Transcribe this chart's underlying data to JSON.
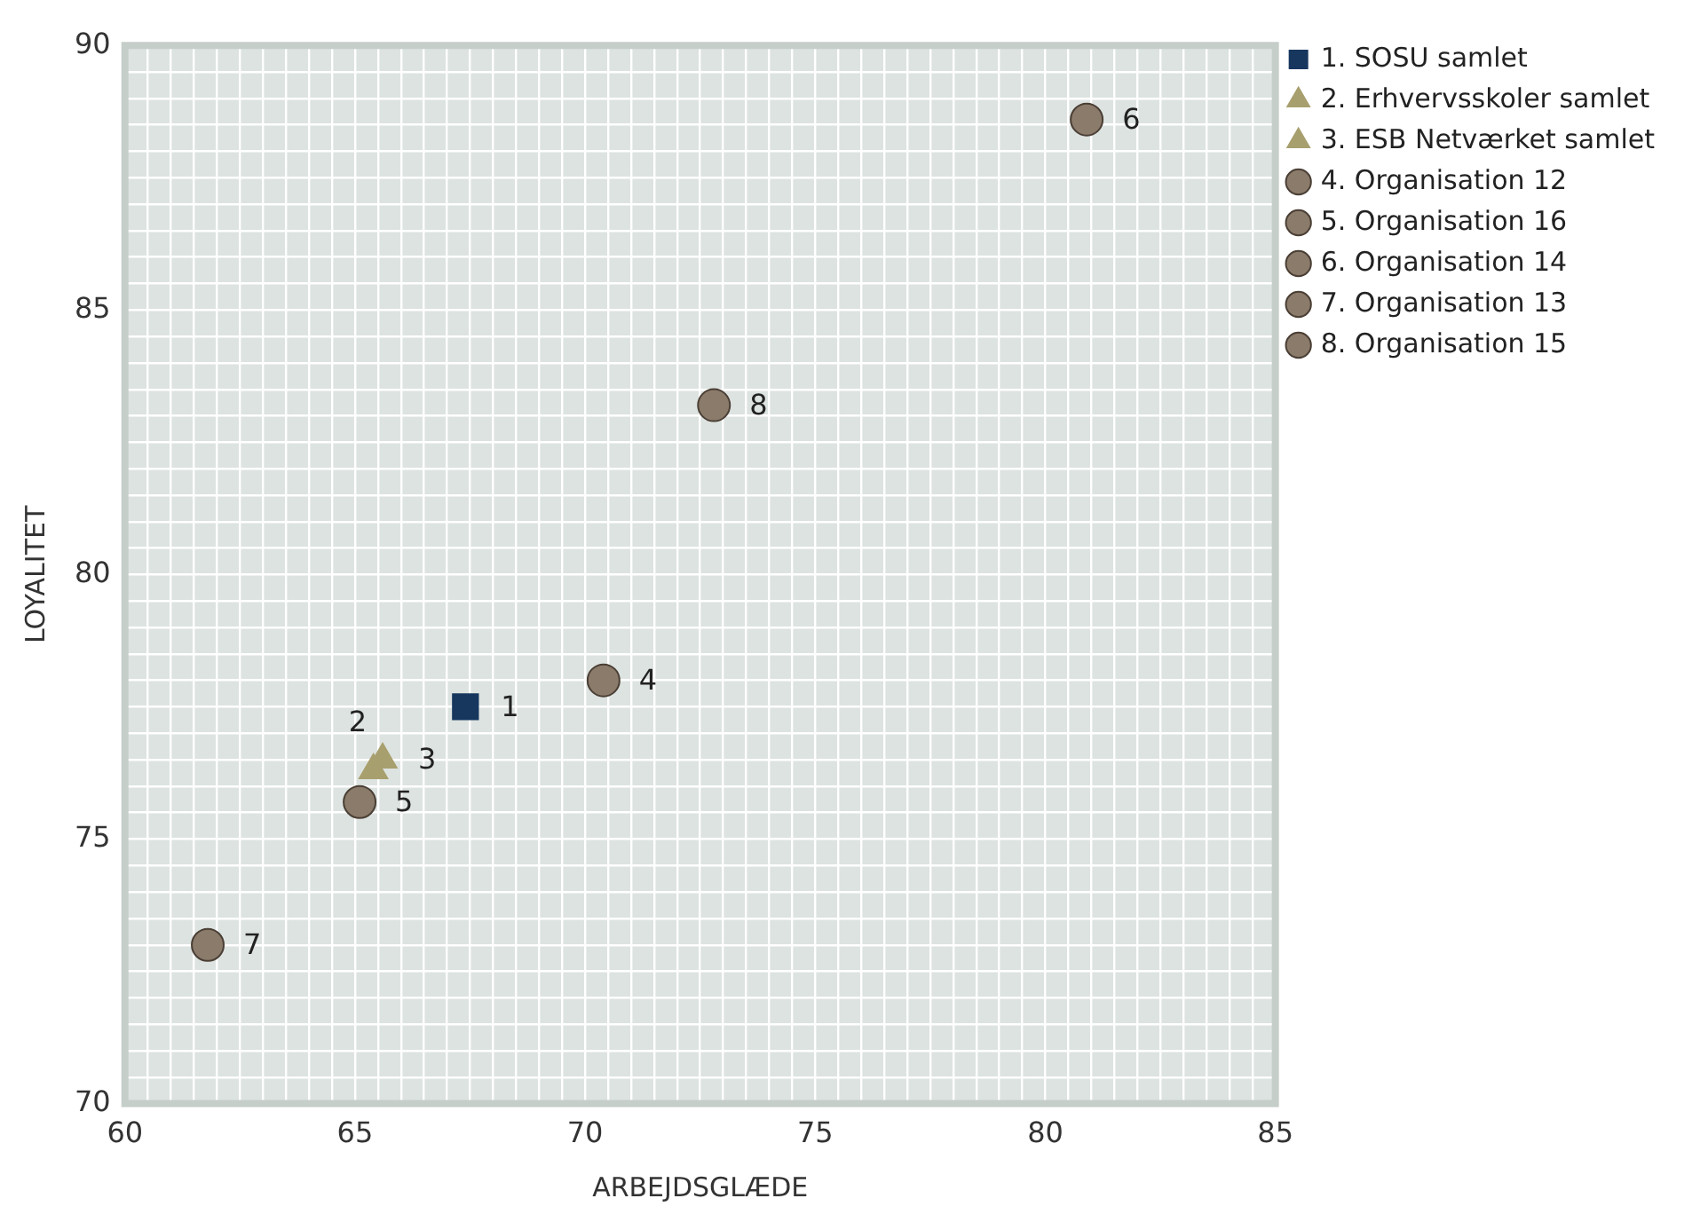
{
  "chart_data": {
    "type": "scatter",
    "xlabel": "ARBEJDSGLÆDE",
    "ylabel": "LOYALITET",
    "xlim": [
      60,
      85
    ],
    "ylim": [
      70,
      90
    ],
    "xticks": [
      60,
      {
        "value": 60.5,
        "label": null
      },
      {
        "value": 61,
        "label": null
      },
      {
        "value": 61.5,
        "label": null
      },
      {
        "value": 62,
        "label": null
      },
      {
        "value": 62.5,
        "label": null
      },
      {
        "value": 63,
        "label": null
      },
      {
        "value": 63.5,
        "label": null
      },
      {
        "value": 64,
        "label": null
      },
      {
        "value": 64.5,
        "label": null
      },
      65,
      {
        "value": 65.5,
        "label": null
      },
      {
        "value": 66,
        "label": null
      },
      {
        "value": 66.5,
        "label": null
      },
      {
        "value": 67,
        "label": null
      },
      {
        "value": 67.5,
        "label": null
      },
      {
        "value": 68,
        "label": null
      },
      {
        "value": 68.5,
        "label": null
      },
      {
        "value": 69,
        "label": null
      },
      {
        "value": 69.5,
        "label": null
      },
      70,
      {
        "value": 70.5,
        "label": null
      },
      {
        "value": 71,
        "label": null
      },
      {
        "value": 71.5,
        "label": null
      },
      {
        "value": 72,
        "label": null
      },
      {
        "value": 72.5,
        "label": null
      },
      {
        "value": 73,
        "label": null
      },
      {
        "value": 73.5,
        "label": null
      },
      {
        "value": 74,
        "label": null
      },
      {
        "value": 74.5,
        "label": null
      },
      75,
      {
        "value": 75.5,
        "label": null
      },
      {
        "value": 76,
        "label": null
      },
      {
        "value": 76.5,
        "label": null
      },
      {
        "value": 77,
        "label": null
      },
      {
        "value": 77.5,
        "label": null
      },
      {
        "value": 78,
        "label": null
      },
      {
        "value": 78.5,
        "label": null
      },
      {
        "value": 79,
        "label": null
      },
      {
        "value": 79.5,
        "label": null
      },
      80,
      {
        "value": 80.5,
        "label": null
      },
      {
        "value": 81,
        "label": null
      },
      {
        "value": 81.5,
        "label": null
      },
      {
        "value": 82,
        "label": null
      },
      {
        "value": 82.5,
        "label": null
      },
      {
        "value": 83,
        "label": null
      },
      {
        "value": 83.5,
        "label": null
      },
      {
        "value": 84,
        "label": null
      },
      {
        "value": 84.5,
        "label": null
      },
      85
    ],
    "yticks": [
      70,
      {
        "value": 70.5,
        "label": null
      },
      {
        "value": 71,
        "label": null
      },
      {
        "value": 71.5,
        "label": null
      },
      {
        "value": 72,
        "label": null
      },
      {
        "value": 72.5,
        "label": null
      },
      {
        "value": 73,
        "label": null
      },
      {
        "value": 73.5,
        "label": null
      },
      {
        "value": 74,
        "label": null
      },
      {
        "value": 74.5,
        "label": null
      },
      75,
      {
        "value": 75.5,
        "label": null
      },
      {
        "value": 76,
        "label": null
      },
      {
        "value": 76.5,
        "label": null
      },
      {
        "value": 77,
        "label": null
      },
      {
        "value": 77.5,
        "label": null
      },
      {
        "value": 78,
        "label": null
      },
      {
        "value": 78.5,
        "label": null
      },
      {
        "value": 79,
        "label": null
      },
      {
        "value": 79.5,
        "label": null
      },
      80,
      {
        "value": 80.5,
        "label": null
      },
      {
        "value": 81,
        "label": null
      },
      {
        "value": 81.5,
        "label": null
      },
      {
        "value": 82,
        "label": null
      },
      {
        "value": 82.5,
        "label": null
      },
      {
        "value": 83,
        "label": null
      },
      {
        "value": 83.5,
        "label": null
      },
      {
        "value": 84,
        "label": null
      },
      {
        "value": 84.5,
        "label": null
      },
      85,
      {
        "value": 85.5,
        "label": null
      },
      {
        "value": 86,
        "label": null
      },
      {
        "value": 86.5,
        "label": null
      },
      {
        "value": 87,
        "label": null
      },
      {
        "value": 87.5,
        "label": null
      },
      {
        "value": 88,
        "label": null
      },
      {
        "value": 88.5,
        "label": null
      },
      {
        "value": 89,
        "label": null
      },
      {
        "value": 89.5,
        "label": null
      },
      90
    ],
    "grid": true,
    "legend": "top right",
    "series": [
      {
        "name": "1. SOSU samlet",
        "color": "#17375e",
        "marker": "square",
        "x": [
          67.4
        ],
        "values": [
          77.5
        ]
      },
      {
        "name": "2. Erhvervsskoler samlet",
        "color": "#a89f6e",
        "marker": "triangle",
        "x": [
          65.4
        ],
        "values": [
          76.3
        ]
      },
      {
        "name": "3. ESB Netværket samlet",
        "color": "#a89f6e",
        "marker": "triangle",
        "x": [
          65.6
        ],
        "values": [
          76.5
        ]
      },
      {
        "name": "4. Organisation 12",
        "color": "#8b7b6b",
        "marker": "circle",
        "x": [
          70.4
        ],
        "values": [
          78.0
        ]
      },
      {
        "name": "5. Organisation 16",
        "color": "#8b7b6b",
        "marker": "circle",
        "x": [
          65.1
        ],
        "values": [
          75.7
        ]
      },
      {
        "name": "6. Organisation 14",
        "color": "#8b7b6b",
        "marker": "circle",
        "x": [
          80.9
        ],
        "values": [
          88.6
        ]
      },
      {
        "name": "7. Organisation 13",
        "color": "#8b7b6b",
        "marker": "circle",
        "x": [
          61.8
        ],
        "values": [
          73.0
        ]
      },
      {
        "name": "8. Organisation 15",
        "color": "#8b7b6b",
        "marker": "circle",
        "x": [
          72.8
        ],
        "values": [
          83.2
        ]
      }
    ],
    "annotations": [
      {
        "text": "1",
        "x": 67.4,
        "y": 77.5
      },
      {
        "text": "2",
        "x": 65.4,
        "y": 76.3
      },
      {
        "text": "3",
        "x": 65.6,
        "y": 76.5
      },
      {
        "text": "4",
        "x": 70.4,
        "y": 78.0
      },
      {
        "text": "5",
        "x": 65.1,
        "y": 75.7
      },
      {
        "text": "6",
        "x": 80.9,
        "y": 88.6
      },
      {
        "text": "7",
        "x": 61.8,
        "y": 73.0
      },
      {
        "text": "8",
        "x": 72.8,
        "y": 83.2
      }
    ]
  }
}
